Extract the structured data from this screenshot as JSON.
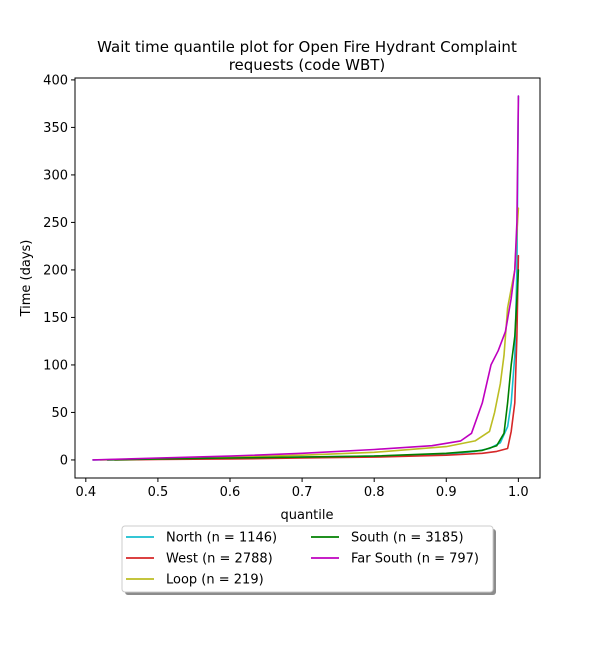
{
  "chart_data": {
    "type": "line",
    "title_lines": [
      "Wait time quantile plot for Open Fire Hydrant Complaint",
      "requests (code WBT)"
    ],
    "xlabel": "quantile",
    "ylabel": "Time (days)",
    "xlim": [
      0.385,
      1.03
    ],
    "ylim": [
      -19,
      402
    ],
    "xticks": [
      0.4,
      0.5,
      0.6,
      0.7,
      0.8,
      0.9,
      1.0
    ],
    "xtick_labels": [
      "0.4",
      "0.5",
      "0.6",
      "0.7",
      "0.8",
      "0.9",
      "1.0"
    ],
    "yticks": [
      0,
      50,
      100,
      150,
      200,
      250,
      300,
      350,
      400
    ],
    "ytick_labels": [
      "0",
      "50",
      "100",
      "150",
      "200",
      "250",
      "300",
      "350",
      "400"
    ],
    "grid": false,
    "legend_position": "below",
    "series": [
      {
        "name": "North (n = 1146)",
        "color": "#17becf",
        "x": [
          0.41,
          0.5,
          0.6,
          0.7,
          0.8,
          0.9,
          0.94,
          0.96,
          0.975,
          0.985,
          0.99,
          0.995,
          0.998,
          1.0
        ],
        "y": [
          0,
          1,
          2,
          3,
          4,
          6,
          9,
          12,
          18,
          35,
          60,
          110,
          200,
          383
        ]
      },
      {
        "name": "West (n = 2788)",
        "color": "#d62728",
        "x": [
          0.44,
          0.5,
          0.6,
          0.7,
          0.8,
          0.9,
          0.95,
          0.97,
          0.985,
          0.99,
          0.995,
          0.998,
          1.0
        ],
        "y": [
          0,
          0.5,
          1,
          2,
          3,
          5,
          7,
          9,
          12,
          30,
          60,
          130,
          215
        ]
      },
      {
        "name": "Loop (n = 219)",
        "color": "#bcbd22",
        "x": [
          0.42,
          0.5,
          0.6,
          0.7,
          0.8,
          0.9,
          0.94,
          0.96,
          0.967,
          0.975,
          0.98,
          0.985,
          0.99,
          0.995,
          0.998,
          1.0
        ],
        "y": [
          0,
          1,
          3,
          5,
          8,
          14,
          20,
          30,
          50,
          80,
          110,
          160,
          180,
          200,
          240,
          265
        ]
      },
      {
        "name": "South (n = 3185)",
        "color": "#008000",
        "x": [
          0.43,
          0.5,
          0.6,
          0.7,
          0.8,
          0.9,
          0.95,
          0.97,
          0.98,
          0.985,
          0.99,
          0.995,
          0.998,
          1.0
        ],
        "y": [
          0,
          1,
          2,
          3,
          4,
          7,
          10,
          15,
          28,
          60,
          100,
          130,
          170,
          200
        ]
      },
      {
        "name": "Far South (n = 797)",
        "color": "#bf00bf",
        "x": [
          0.41,
          0.5,
          0.6,
          0.7,
          0.8,
          0.88,
          0.92,
          0.935,
          0.95,
          0.962,
          0.972,
          0.982,
          0.99,
          0.995,
          0.998,
          1.0
        ],
        "y": [
          0,
          2,
          4,
          7,
          11,
          15,
          20,
          28,
          60,
          100,
          115,
          135,
          170,
          200,
          250,
          383
        ]
      }
    ]
  }
}
